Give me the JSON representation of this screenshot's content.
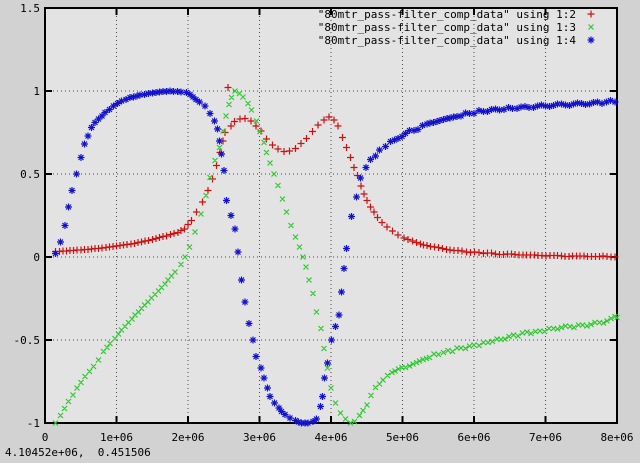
{
  "window": {
    "bg_color": "#d2d2d2",
    "plot_bg_color": "#e3e3e3",
    "border_color": "#000000",
    "grid_color": "#4a4a4a",
    "text_color": "#000000"
  },
  "status_bar": {
    "text": "4.10452e+06,  0.451506"
  },
  "chart_data": {
    "type": "scatter",
    "title": "",
    "xlabel": "",
    "ylabel": "",
    "xlim": [
      0,
      8000000
    ],
    "ylim": [
      -1,
      1.5
    ],
    "grid": true,
    "legend_position": "top-right",
    "x_ticks": [
      {
        "value": 0,
        "label": "0"
      },
      {
        "value": 1000000,
        "label": "1e+06"
      },
      {
        "value": 2000000,
        "label": "2e+06"
      },
      {
        "value": 3000000,
        "label": "3e+06"
      },
      {
        "value": 4000000,
        "label": "4e+06"
      },
      {
        "value": 5000000,
        "label": "5e+06"
      },
      {
        "value": 6000000,
        "label": "6e+06"
      },
      {
        "value": 7000000,
        "label": "7e+06"
      },
      {
        "value": 8000000,
        "label": "8e+06"
      }
    ],
    "y_ticks": [
      {
        "value": 1.5,
        "label": "1.5"
      },
      {
        "value": 1,
        "label": "1"
      },
      {
        "value": 0.5,
        "label": "0.5"
      },
      {
        "value": 0,
        "label": "0"
      },
      {
        "value": -0.5,
        "label": "-0.5"
      },
      {
        "value": -1,
        "label": "-1"
      }
    ],
    "series": [
      {
        "name": "\"80mtr_pass-filter_comp_data\" using 1:2",
        "marker": "plus",
        "color": "#cf1010",
        "points": [
          [
            150000,
            0.033
          ],
          [
            300000,
            0.037
          ],
          [
            500000,
            0.042
          ],
          [
            700000,
            0.05
          ],
          [
            900000,
            0.06
          ],
          [
            1100000,
            0.072
          ],
          [
            1300000,
            0.086
          ],
          [
            1500000,
            0.105
          ],
          [
            1700000,
            0.128
          ],
          [
            1860000,
            0.148
          ],
          [
            1950000,
            0.17
          ],
          [
            2050000,
            0.22
          ],
          [
            2120000,
            0.27
          ],
          [
            2200000,
            0.33
          ],
          [
            2280000,
            0.4
          ],
          [
            2340000,
            0.47
          ],
          [
            2400000,
            0.55
          ],
          [
            2450000,
            0.63
          ],
          [
            2490000,
            0.7
          ],
          [
            2520000,
            0.75
          ],
          [
            2560000,
            1.02
          ],
          [
            2600000,
            0.79
          ],
          [
            2650000,
            0.815
          ],
          [
            2730000,
            0.83
          ],
          [
            2800000,
            0.835
          ],
          [
            2880000,
            0.82
          ],
          [
            2950000,
            0.79
          ],
          [
            3020000,
            0.76
          ],
          [
            3100000,
            0.71
          ],
          [
            3180000,
            0.675
          ],
          [
            3260000,
            0.65
          ],
          [
            3340000,
            0.637
          ],
          [
            3420000,
            0.64
          ],
          [
            3500000,
            0.655
          ],
          [
            3580000,
            0.685
          ],
          [
            3660000,
            0.715
          ],
          [
            3740000,
            0.755
          ],
          [
            3820000,
            0.795
          ],
          [
            3900000,
            0.825
          ],
          [
            3970000,
            0.843
          ],
          [
            4040000,
            0.825
          ],
          [
            4100000,
            0.79
          ],
          [
            4160000,
            0.72
          ],
          [
            4220000,
            0.66
          ],
          [
            4270000,
            0.6
          ],
          [
            4320000,
            0.54
          ],
          [
            4370000,
            0.49
          ],
          [
            4420000,
            0.43
          ],
          [
            4460000,
            0.38
          ],
          [
            4500000,
            0.34
          ],
          [
            4550000,
            0.3
          ],
          [
            4600000,
            0.27
          ],
          [
            4650000,
            0.24
          ],
          [
            4710000,
            0.21
          ],
          [
            4780000,
            0.18
          ],
          [
            4860000,
            0.155
          ],
          [
            4940000,
            0.135
          ],
          [
            5020000,
            0.115
          ],
          [
            5140000,
            0.095
          ],
          [
            5250000,
            0.08
          ],
          [
            5390000,
            0.065
          ],
          [
            5560000,
            0.05
          ],
          [
            5720000,
            0.04
          ],
          [
            5950000,
            0.03
          ],
          [
            6190000,
            0.022
          ],
          [
            6470000,
            0.016
          ],
          [
            6790000,
            0.011
          ],
          [
            7170000,
            0.007
          ],
          [
            7590000,
            0.004
          ],
          [
            7970000,
            0.002
          ]
        ]
      },
      {
        "name": "\"80mtr_pass-filter_comp_data\" using 1:3",
        "marker": "cross",
        "color": "#2ec82e",
        "points": [
          [
            150000,
            -1.0
          ],
          [
            220000,
            -0.955
          ],
          [
            330000,
            -0.87
          ],
          [
            450000,
            -0.79
          ],
          [
            560000,
            -0.72
          ],
          [
            680000,
            -0.66
          ],
          [
            750000,
            -0.62
          ],
          [
            820000,
            -0.57
          ],
          [
            910000,
            -0.52
          ],
          [
            980000,
            -0.49
          ],
          [
            1070000,
            -0.44
          ],
          [
            1170000,
            -0.395
          ],
          [
            1260000,
            -0.35
          ],
          [
            1350000,
            -0.31
          ],
          [
            1440000,
            -0.27
          ],
          [
            1540000,
            -0.225
          ],
          [
            1630000,
            -0.185
          ],
          [
            1720000,
            -0.14
          ],
          [
            1820000,
            -0.09
          ],
          [
            1900000,
            -0.045
          ],
          [
            1960000,
            0.0
          ],
          [
            2020000,
            0.06
          ],
          [
            2100000,
            0.15
          ],
          [
            2180000,
            0.26
          ],
          [
            2250000,
            0.37
          ],
          [
            2310000,
            0.48
          ],
          [
            2380000,
            0.58
          ],
          [
            2440000,
            0.66
          ],
          [
            2490000,
            0.76
          ],
          [
            2530000,
            0.85
          ],
          [
            2570000,
            0.92
          ],
          [
            2610000,
            0.96
          ],
          [
            2660000,
            1.0
          ],
          [
            2720000,
            0.985
          ],
          [
            2770000,
            0.965
          ],
          [
            2840000,
            0.925
          ],
          [
            2890000,
            0.885
          ],
          [
            2960000,
            0.82
          ],
          [
            3010000,
            0.755
          ],
          [
            3060000,
            0.69
          ],
          [
            3100000,
            0.63
          ],
          [
            3150000,
            0.565
          ],
          [
            3200000,
            0.5
          ],
          [
            3260000,
            0.43
          ],
          [
            3320000,
            0.35
          ],
          [
            3380000,
            0.27
          ],
          [
            3440000,
            0.19
          ],
          [
            3500000,
            0.12
          ],
          [
            3560000,
            0.06
          ],
          [
            3610000,
            0.0
          ],
          [
            3650000,
            -0.06
          ],
          [
            3690000,
            -0.14
          ],
          [
            3750000,
            -0.22
          ],
          [
            3800000,
            -0.33
          ],
          [
            3860000,
            -0.43
          ],
          [
            3900000,
            -0.55
          ],
          [
            3950000,
            -0.67
          ],
          [
            4000000,
            -0.79
          ],
          [
            4060000,
            -0.88
          ],
          [
            4130000,
            -0.94
          ],
          [
            4200000,
            -0.975
          ],
          [
            4270000,
            -1.0
          ],
          [
            4330000,
            -0.99
          ],
          [
            4400000,
            -0.955
          ],
          [
            4500000,
            -0.885
          ],
          [
            4620000,
            -0.79
          ],
          [
            4730000,
            -0.735
          ],
          [
            4850000,
            -0.7
          ],
          [
            4990000,
            -0.67
          ],
          [
            5100000,
            -0.65
          ],
          [
            5240000,
            -0.62
          ],
          [
            5380000,
            -0.6
          ],
          [
            5570000,
            -0.575
          ],
          [
            5760000,
            -0.555
          ],
          [
            5940000,
            -0.54
          ],
          [
            6130000,
            -0.52
          ],
          [
            6320000,
            -0.5
          ],
          [
            6550000,
            -0.475
          ],
          [
            6740000,
            -0.455
          ],
          [
            6920000,
            -0.45
          ],
          [
            7110000,
            -0.43
          ],
          [
            7340000,
            -0.42
          ],
          [
            7580000,
            -0.41
          ],
          [
            7810000,
            -0.39
          ],
          [
            7970000,
            -0.365
          ],
          [
            8000000,
            -0.36
          ]
        ]
      },
      {
        "name": "\"80mtr_pass-filter_comp_data\" using 1:4",
        "marker": "asterisk",
        "color": "#1212cf",
        "points": [
          [
            150000,
            0.02
          ],
          [
            220000,
            0.09
          ],
          [
            280000,
            0.19
          ],
          [
            330000,
            0.3
          ],
          [
            380000,
            0.4
          ],
          [
            440000,
            0.5
          ],
          [
            500000,
            0.6
          ],
          [
            550000,
            0.68
          ],
          [
            600000,
            0.73
          ],
          [
            650000,
            0.78
          ],
          [
            700000,
            0.81
          ],
          [
            750000,
            0.83
          ],
          [
            840000,
            0.87
          ],
          [
            960000,
            0.91
          ],
          [
            1070000,
            0.94
          ],
          [
            1190000,
            0.96
          ],
          [
            1330000,
            0.975
          ],
          [
            1450000,
            0.985
          ],
          [
            1600000,
            0.995
          ],
          [
            1750000,
            1.0
          ],
          [
            1900000,
            0.995
          ],
          [
            1980000,
            0.99
          ],
          [
            2070000,
            0.965
          ],
          [
            2160000,
            0.935
          ],
          [
            2240000,
            0.91
          ],
          [
            2310000,
            0.865
          ],
          [
            2370000,
            0.82
          ],
          [
            2410000,
            0.77
          ],
          [
            2440000,
            0.7
          ],
          [
            2470000,
            0.62
          ],
          [
            2500000,
            0.52
          ],
          [
            2540000,
            0.34
          ],
          [
            2600000,
            0.25
          ],
          [
            2660000,
            0.17
          ],
          [
            2700000,
            0.03
          ],
          [
            2750000,
            -0.14
          ],
          [
            2800000,
            -0.27
          ],
          [
            2850000,
            -0.4
          ],
          [
            2910000,
            -0.5
          ],
          [
            2950000,
            -0.6
          ],
          [
            3020000,
            -0.67
          ],
          [
            3060000,
            -0.73
          ],
          [
            3110000,
            -0.79
          ],
          [
            3150000,
            -0.84
          ],
          [
            3210000,
            -0.88
          ],
          [
            3270000,
            -0.91
          ],
          [
            3310000,
            -0.93
          ],
          [
            3360000,
            -0.95
          ],
          [
            3430000,
            -0.97
          ],
          [
            3500000,
            -0.985
          ],
          [
            3590000,
            -1.0
          ],
          [
            3680000,
            -1.0
          ],
          [
            3750000,
            -0.99
          ],
          [
            3800000,
            -0.975
          ],
          [
            3850000,
            -0.9
          ],
          [
            3880000,
            -0.84
          ],
          [
            3910000,
            -0.73
          ],
          [
            3950000,
            -0.64
          ],
          [
            4010000,
            -0.5
          ],
          [
            4060000,
            -0.42
          ],
          [
            4110000,
            -0.35
          ],
          [
            4150000,
            -0.21
          ],
          [
            4180000,
            -0.07
          ],
          [
            4220000,
            0.05
          ],
          [
            4290000,
            0.245
          ],
          [
            4360000,
            0.36
          ],
          [
            4410000,
            0.47
          ],
          [
            4490000,
            0.54
          ],
          [
            4550000,
            0.58
          ],
          [
            4620000,
            0.615
          ],
          [
            4680000,
            0.64
          ],
          [
            4760000,
            0.67
          ],
          [
            4830000,
            0.69
          ],
          [
            4890000,
            0.71
          ],
          [
            4990000,
            0.73
          ],
          [
            5100000,
            0.755
          ],
          [
            5220000,
            0.775
          ],
          [
            5340000,
            0.8
          ],
          [
            5480000,
            0.815
          ],
          [
            5620000,
            0.835
          ],
          [
            5760000,
            0.85
          ],
          [
            5940000,
            0.865
          ],
          [
            6130000,
            0.88
          ],
          [
            6360000,
            0.89
          ],
          [
            6600000,
            0.9
          ],
          [
            6830000,
            0.905
          ],
          [
            7110000,
            0.915
          ],
          [
            7390000,
            0.92
          ],
          [
            7670000,
            0.928
          ],
          [
            7970000,
            0.938
          ]
        ]
      }
    ]
  }
}
